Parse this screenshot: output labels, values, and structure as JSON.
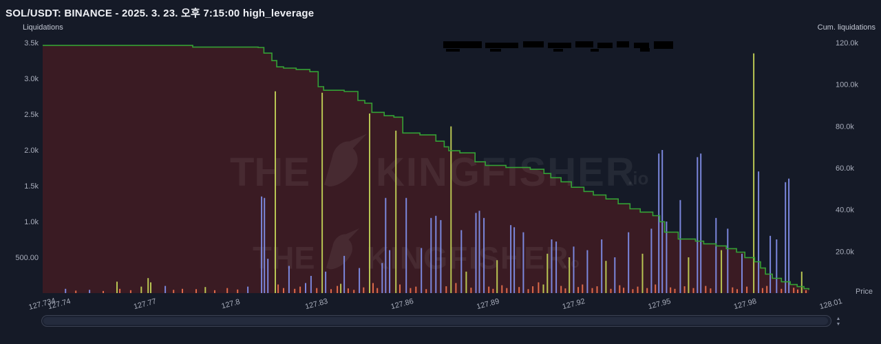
{
  "header": {
    "title": "SOL/USDT: BINANCE - 2025. 3. 23. 오후 7:15:00 high_leverage"
  },
  "axes": {
    "left_label": "Liquidations",
    "right_label": "Cum. liquidations",
    "x_label": "Price",
    "left_ticks": [
      "3.5k",
      "3.0k",
      "2.5k",
      "2.0k",
      "1.5k",
      "1.0k",
      "500.00"
    ],
    "left_tick_values": [
      3500,
      3000,
      2500,
      2000,
      1500,
      1000,
      500
    ],
    "right_ticks": [
      "120.0k",
      "100.0k",
      "80.0k",
      "60.0k",
      "40.0k",
      "20.0k"
    ],
    "right_tick_values": [
      120000,
      100000,
      80000,
      60000,
      40000,
      20000
    ],
    "x_ticks": [
      "127.734",
      "127.74",
      "127.77",
      "127.8",
      "127.83",
      "127.86",
      "127.89",
      "127.92",
      "127.95",
      "127.98",
      "128.01"
    ],
    "x_tick_values": [
      127.734,
      127.74,
      127.77,
      127.8,
      127.83,
      127.86,
      127.89,
      127.92,
      127.95,
      127.98,
      128.01
    ]
  },
  "watermark": {
    "prefix": "THE",
    "brand": "KINGFISHER",
    "suffix": ".io"
  },
  "redactions": [
    [
      644,
      60,
      56,
      10
    ],
    [
      705,
      62,
      48,
      8
    ],
    [
      760,
      60,
      30,
      9
    ],
    [
      796,
      62,
      34,
      8
    ],
    [
      836,
      60,
      26,
      9
    ],
    [
      868,
      62,
      22,
      8
    ],
    [
      896,
      60,
      18,
      9
    ],
    [
      921,
      62,
      22,
      8
    ],
    [
      950,
      60,
      28,
      11
    ],
    [
      648,
      71,
      20,
      4
    ],
    [
      712,
      71,
      16,
      4
    ],
    [
      804,
      71,
      14,
      4
    ],
    [
      858,
      71,
      12,
      4
    ],
    [
      930,
      70,
      14,
      5
    ]
  ],
  "chart_data": {
    "type": "bar",
    "title": "SOL/USDT Binance liquidations by price level",
    "x_range": [
      127.734,
      128.01
    ],
    "left_axis": {
      "label": "Liquidations",
      "range": [
        0,
        3500
      ]
    },
    "right_axis": {
      "label": "Cum. liquidations",
      "range": [
        0,
        120000
      ]
    },
    "colors": {
      "b": "#7b87dd",
      "g": "#b9c653",
      "o": "#de6a4a"
    },
    "cumulative_line": {
      "color": "#35a135",
      "fill": "#3a1b23",
      "points": [
        [
          127.734,
          118700
        ],
        [
          127.77,
          118700
        ],
        [
          127.7865,
          117900
        ],
        [
          127.8094,
          117700
        ],
        [
          127.8114,
          115000
        ],
        [
          127.8142,
          111400
        ],
        [
          127.8159,
          108400
        ],
        [
          127.8183,
          107800
        ],
        [
          127.8227,
          107100
        ],
        [
          127.8275,
          106100
        ],
        [
          127.8304,
          98900
        ],
        [
          127.8323,
          97200
        ],
        [
          127.8395,
          96600
        ],
        [
          127.8443,
          92300
        ],
        [
          127.8467,
          91000
        ],
        [
          127.8492,
          86600
        ],
        [
          127.8535,
          85000
        ],
        [
          127.8569,
          84300
        ],
        [
          127.86,
          76700
        ],
        [
          127.866,
          75800
        ],
        [
          127.8716,
          72800
        ],
        [
          127.8745,
          70100
        ],
        [
          127.8761,
          68200
        ],
        [
          127.88,
          67200
        ],
        [
          127.8853,
          62900
        ],
        [
          127.8889,
          61200
        ],
        [
          127.8961,
          60200
        ],
        [
          127.9046,
          59300
        ],
        [
          127.9094,
          57300
        ],
        [
          127.9118,
          55300
        ],
        [
          127.9154,
          53300
        ],
        [
          127.919,
          50700
        ],
        [
          127.9234,
          48700
        ],
        [
          127.9267,
          47000
        ],
        [
          127.9311,
          45100
        ],
        [
          127.9354,
          42800
        ],
        [
          127.9395,
          40400
        ],
        [
          127.9431,
          38800
        ],
        [
          127.9475,
          37100
        ],
        [
          127.9499,
          34200
        ],
        [
          127.9516,
          29200
        ],
        [
          127.9564,
          25900
        ],
        [
          127.9624,
          24900
        ],
        [
          127.9653,
          23600
        ],
        [
          127.9696,
          22600
        ],
        [
          127.9732,
          21300
        ],
        [
          127.9768,
          19600
        ],
        [
          127.9797,
          17000
        ],
        [
          127.9831,
          15000
        ],
        [
          127.9852,
          12000
        ],
        [
          127.9869,
          9100
        ],
        [
          127.9893,
          7100
        ],
        [
          127.9925,
          5400
        ],
        [
          127.9956,
          4100
        ],
        [
          127.998,
          3100
        ],
        [
          128.0004,
          2100
        ],
        [
          128.0021,
          1500
        ]
      ]
    },
    "bars": [
      [
        127.742,
        60,
        "b"
      ],
      [
        127.7456,
        35,
        "o"
      ],
      [
        127.7504,
        45,
        "b"
      ],
      [
        127.7552,
        30,
        "o"
      ],
      [
        127.76,
        160,
        "g"
      ],
      [
        127.761,
        60,
        "o"
      ],
      [
        127.7648,
        40,
        "o"
      ],
      [
        127.7685,
        90,
        "g"
      ],
      [
        127.7709,
        210,
        "g"
      ],
      [
        127.7718,
        150,
        "g"
      ],
      [
        127.7769,
        100,
        "b"
      ],
      [
        127.7798,
        45,
        "o"
      ],
      [
        127.7829,
        60,
        "o"
      ],
      [
        127.7877,
        55,
        "o"
      ],
      [
        127.7909,
        85,
        "g"
      ],
      [
        127.7942,
        40,
        "o"
      ],
      [
        127.7986,
        70,
        "o"
      ],
      [
        127.8022,
        50,
        "o"
      ],
      [
        127.8058,
        90,
        "b"
      ],
      [
        127.8106,
        1350,
        "b"
      ],
      [
        127.8116,
        1330,
        "b"
      ],
      [
        127.8128,
        480,
        "b"
      ],
      [
        127.8154,
        2820,
        "g"
      ],
      [
        127.8164,
        120,
        "o"
      ],
      [
        127.8183,
        70,
        "o"
      ],
      [
        127.8202,
        380,
        "b"
      ],
      [
        127.8222,
        60,
        "o"
      ],
      [
        127.8241,
        90,
        "o"
      ],
      [
        127.826,
        140,
        "b"
      ],
      [
        127.8279,
        240,
        "b"
      ],
      [
        127.8299,
        70,
        "o"
      ],
      [
        127.8318,
        2800,
        "g"
      ],
      [
        127.833,
        300,
        "b"
      ],
      [
        127.8349,
        55,
        "o"
      ],
      [
        127.8371,
        100,
        "o"
      ],
      [
        127.8383,
        130,
        "g"
      ],
      [
        127.8395,
        520,
        "b"
      ],
      [
        127.8409,
        65,
        "o"
      ],
      [
        127.8429,
        45,
        "o"
      ],
      [
        127.8448,
        350,
        "b"
      ],
      [
        127.8463,
        80,
        "o"
      ],
      [
        127.8484,
        2510,
        "g"
      ],
      [
        127.8496,
        140,
        "o"
      ],
      [
        127.8511,
        70,
        "o"
      ],
      [
        127.8528,
        420,
        "b"
      ],
      [
        127.854,
        1330,
        "b"
      ],
      [
        127.8554,
        600,
        "b"
      ],
      [
        127.8576,
        2270,
        "g"
      ],
      [
        127.859,
        120,
        "o"
      ],
      [
        127.8612,
        1330,
        "b"
      ],
      [
        127.8627,
        70,
        "o"
      ],
      [
        127.8646,
        90,
        "o"
      ],
      [
        127.8665,
        630,
        "b"
      ],
      [
        127.8682,
        55,
        "o"
      ],
      [
        127.8699,
        1050,
        "b"
      ],
      [
        127.8716,
        1080,
        "b"
      ],
      [
        127.8733,
        1020,
        "b"
      ],
      [
        127.8752,
        95,
        "o"
      ],
      [
        127.8769,
        2330,
        "g"
      ],
      [
        127.8786,
        140,
        "o"
      ],
      [
        127.8805,
        880,
        "b"
      ],
      [
        127.8822,
        300,
        "g"
      ],
      [
        127.8839,
        75,
        "o"
      ],
      [
        127.8856,
        1120,
        "b"
      ],
      [
        127.8868,
        1150,
        "b"
      ],
      [
        127.8884,
        1050,
        "b"
      ],
      [
        127.8901,
        90,
        "o"
      ],
      [
        127.8916,
        60,
        "o"
      ],
      [
        127.893,
        460,
        "g"
      ],
      [
        127.8947,
        110,
        "o"
      ],
      [
        127.8964,
        70,
        "o"
      ],
      [
        127.8978,
        950,
        "b"
      ],
      [
        127.899,
        920,
        "b"
      ],
      [
        127.9007,
        85,
        "o"
      ],
      [
        127.9022,
        850,
        "b"
      ],
      [
        127.9039,
        55,
        "o"
      ],
      [
        127.9055,
        95,
        "o"
      ],
      [
        127.9075,
        150,
        "o"
      ],
      [
        127.9092,
        120,
        "g"
      ],
      [
        127.9106,
        550,
        "g"
      ],
      [
        127.9121,
        750,
        "b"
      ],
      [
        127.9137,
        720,
        "b"
      ],
      [
        127.9154,
        100,
        "o"
      ],
      [
        127.9169,
        65,
        "o"
      ],
      [
        127.9183,
        500,
        "g"
      ],
      [
        127.9198,
        650,
        "b"
      ],
      [
        127.9214,
        85,
        "o"
      ],
      [
        127.9229,
        120,
        "o"
      ],
      [
        127.9246,
        600,
        "b"
      ],
      [
        127.9263,
        70,
        "o"
      ],
      [
        127.928,
        95,
        "o"
      ],
      [
        127.9296,
        750,
        "b"
      ],
      [
        127.9311,
        450,
        "g"
      ],
      [
        127.9328,
        60,
        "o"
      ],
      [
        127.9342,
        500,
        "b"
      ],
      [
        127.9359,
        110,
        "o"
      ],
      [
        127.9373,
        75,
        "o"
      ],
      [
        127.939,
        850,
        "b"
      ],
      [
        127.9405,
        55,
        "o"
      ],
      [
        127.9422,
        90,
        "o"
      ],
      [
        127.9439,
        550,
        "g"
      ],
      [
        127.9455,
        70,
        "o"
      ],
      [
        127.947,
        900,
        "b"
      ],
      [
        127.9484,
        120,
        "o"
      ],
      [
        127.9496,
        1950,
        "b"
      ],
      [
        127.9508,
        2000,
        "b"
      ],
      [
        127.9523,
        1000,
        "b"
      ],
      [
        127.9537,
        80,
        "o"
      ],
      [
        127.9552,
        60,
        "o"
      ],
      [
        127.9571,
        1300,
        "b"
      ],
      [
        127.9586,
        95,
        "o"
      ],
      [
        127.96,
        500,
        "g"
      ],
      [
        127.9617,
        70,
        "o"
      ],
      [
        127.9631,
        1900,
        "b"
      ],
      [
        127.9643,
        1950,
        "b"
      ],
      [
        127.966,
        100,
        "o"
      ],
      [
        127.9677,
        65,
        "o"
      ],
      [
        127.9696,
        1050,
        "b"
      ],
      [
        127.9715,
        600,
        "g"
      ],
      [
        127.9737,
        900,
        "b"
      ],
      [
        127.9754,
        80,
        "o"
      ],
      [
        127.977,
        55,
        "o"
      ],
      [
        127.9787,
        550,
        "b"
      ],
      [
        127.9804,
        90,
        "o"
      ],
      [
        127.9828,
        3350,
        "g"
      ],
      [
        127.9845,
        1700,
        "b"
      ],
      [
        127.9859,
        70,
        "o"
      ],
      [
        127.9874,
        100,
        "o"
      ],
      [
        127.9886,
        800,
        "b"
      ],
      [
        127.9908,
        750,
        "b"
      ],
      [
        127.9925,
        60,
        "o"
      ],
      [
        127.9939,
        1550,
        "b"
      ],
      [
        127.9951,
        1600,
        "b"
      ],
      [
        127.9968,
        75,
        "o"
      ],
      [
        127.9982,
        50,
        "o"
      ],
      [
        127.9996,
        300,
        "g"
      ],
      [
        128.0011,
        40,
        "o"
      ]
    ]
  }
}
